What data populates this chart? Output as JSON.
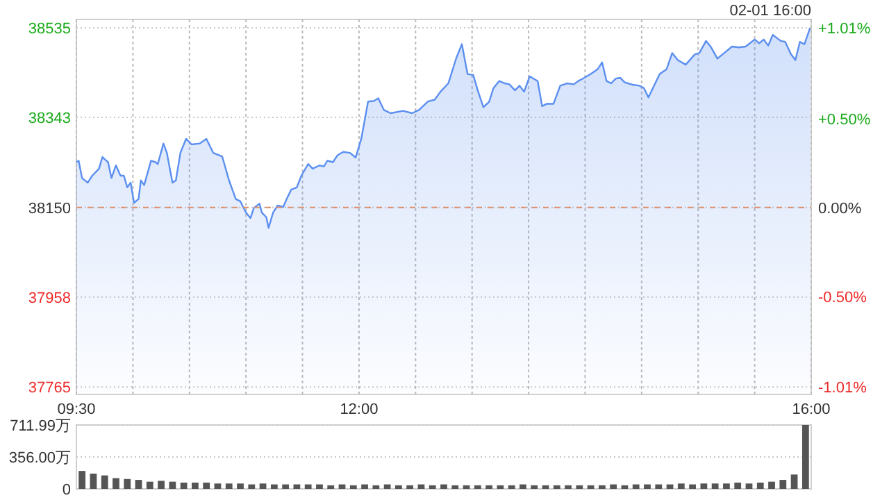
{
  "chart_data": [
    {
      "type": "area",
      "annotations": [
        "02-01 16:00"
      ],
      "x": [
        9.5,
        9.52,
        9.55,
        9.6,
        9.64,
        9.7,
        9.73,
        9.78,
        9.81,
        9.85,
        9.89,
        9.92,
        9.95,
        9.98,
        10.01,
        10.05,
        10.07,
        10.1,
        10.16,
        10.2,
        10.22,
        10.27,
        10.3,
        10.35,
        10.38,
        10.42,
        10.47,
        10.52,
        10.59,
        10.65,
        10.71,
        10.79,
        10.85,
        10.91,
        10.95,
        11.0,
        11.04,
        11.07,
        11.12,
        11.14,
        11.18,
        11.2,
        11.24,
        11.28,
        11.33,
        11.36,
        11.4,
        11.45,
        11.49,
        11.55,
        11.59,
        11.65,
        11.69,
        11.72,
        11.77,
        11.81,
        11.86,
        11.92,
        11.97,
        12.02,
        12.08,
        12.13,
        12.17,
        12.22,
        12.28,
        12.39,
        12.47,
        12.53,
        12.61,
        12.67,
        12.72,
        12.79,
        12.86,
        12.91,
        12.96,
        13.01,
        13.05,
        13.1,
        13.15,
        13.19,
        13.24,
        13.29,
        13.33,
        13.38,
        13.42,
        13.46,
        13.51,
        13.58,
        13.62,
        13.66,
        13.72,
        13.78,
        13.84,
        13.9,
        13.94,
        13.98,
        14.05,
        14.11,
        14.15,
        14.19,
        14.23,
        14.27,
        14.31,
        14.35,
        14.42,
        14.48,
        14.52,
        14.56,
        14.62,
        14.66,
        14.72,
        14.77,
        14.82,
        14.89,
        14.97,
        15.01,
        15.07,
        15.11,
        15.17,
        15.23,
        15.3,
        15.36,
        15.42,
        15.5,
        15.54,
        15.58,
        15.62,
        15.66,
        15.73,
        15.77,
        15.82,
        15.86,
        15.9,
        15.94,
        15.99
      ],
      "series": [
        {
          "color": "#5b8ff0",
          "values": [
            38247,
            38250,
            38213,
            38203,
            38218,
            38233,
            38258,
            38247,
            38213,
            38240,
            38218,
            38218,
            38193,
            38203,
            38160,
            38168,
            38208,
            38198,
            38250,
            38247,
            38243,
            38287,
            38267,
            38203,
            38208,
            38267,
            38297,
            38285,
            38287,
            38297,
            38267,
            38259,
            38208,
            38168,
            38163,
            38139,
            38127,
            38149,
            38158,
            38139,
            38129,
            38106,
            38139,
            38154,
            38151,
            38168,
            38188,
            38193,
            38218,
            38243,
            38233,
            38240,
            38238,
            38250,
            38247,
            38262,
            38269,
            38267,
            38257,
            38297,
            38377,
            38378,
            38384,
            38359,
            38352,
            38357,
            38352,
            38359,
            38377,
            38381,
            38398,
            38416,
            38470,
            38500,
            38436,
            38434,
            38401,
            38365,
            38376,
            38406,
            38421,
            38416,
            38414,
            38401,
            38411,
            38398,
            38431,
            38421,
            38367,
            38372,
            38372,
            38411,
            38416,
            38414,
            38421,
            38426,
            38436,
            38446,
            38461,
            38421,
            38416,
            38426,
            38428,
            38418,
            38413,
            38411,
            38406,
            38386,
            38416,
            38436,
            38446,
            38481,
            38466,
            38456,
            38478,
            38481,
            38507,
            38495,
            38469,
            38481,
            38495,
            38493,
            38495,
            38510,
            38502,
            38510,
            38497,
            38520,
            38507,
            38505,
            38479,
            38466,
            38505,
            38500,
            38535
          ]
        }
      ],
      "xlim": [
        9.5,
        16
      ],
      "xticks": [
        {
          "value": 9.5,
          "label": "09:30"
        },
        {
          "value": 10,
          "label": null
        },
        {
          "value": 10.5,
          "label": null
        },
        {
          "value": 11,
          "label": null
        },
        {
          "value": 11.5,
          "label": null
        },
        {
          "value": 12,
          "label": "12:00"
        },
        {
          "value": 12.5,
          "label": null
        },
        {
          "value": 13,
          "label": null
        },
        {
          "value": 13.5,
          "label": null
        },
        {
          "value": 14,
          "label": null
        },
        {
          "value": 14.5,
          "label": null
        },
        {
          "value": 15,
          "label": null
        },
        {
          "value": 15.5,
          "label": null
        },
        {
          "value": 16,
          "label": "16:00"
        }
      ],
      "ylim": [
        37749,
        38553
      ],
      "yticks": [
        37765,
        37958,
        38150,
        38343,
        38535
      ],
      "y2lim": [
        -1.051,
        1.057
      ],
      "y2ticks": [
        {
          "value": -1.01,
          "label": "-1.01%"
        },
        {
          "value": -0.5,
          "label": "-0.50%"
        },
        {
          "value": 0,
          "label": "0.00%"
        },
        {
          "value": 0.5,
          "label": "+0.50%"
        },
        {
          "value": 1.01,
          "label": "+1.01%"
        }
      ],
      "ref_lines": [
        {
          "axis": "y",
          "value": 38150,
          "color": "#e0906c",
          "line_style": "dashed"
        }
      ],
      "grid": true
    },
    {
      "type": "bar",
      "color": "#555555",
      "x": [
        9.55,
        9.65,
        9.75,
        9.85,
        9.95,
        10.05,
        10.15,
        10.25,
        10.35,
        10.45,
        10.55,
        10.65,
        10.75,
        10.85,
        10.95,
        11.05,
        11.15,
        11.25,
        11.35,
        11.45,
        11.55,
        11.65,
        11.75,
        11.85,
        11.95,
        12.05,
        12.15,
        12.25,
        12.35,
        12.45,
        12.55,
        12.65,
        12.75,
        12.85,
        12.95,
        13.05,
        13.15,
        13.25,
        13.35,
        13.45,
        13.55,
        13.65,
        13.75,
        13.85,
        13.95,
        14.05,
        14.15,
        14.25,
        14.35,
        14.45,
        14.55,
        14.65,
        14.75,
        14.85,
        14.95,
        15.05,
        15.15,
        15.25,
        15.35,
        15.45,
        15.55,
        15.65,
        15.75,
        15.85,
        15.95
      ],
      "values": [
        200,
        170,
        150,
        120,
        110,
        100,
        80,
        90,
        80,
        70,
        70,
        70,
        60,
        60,
        60,
        50,
        60,
        50,
        50,
        50,
        50,
        50,
        40,
        50,
        40,
        50,
        40,
        50,
        40,
        40,
        50,
        40,
        50,
        40,
        40,
        40,
        40,
        40,
        40,
        50,
        40,
        40,
        40,
        40,
        40,
        40,
        40,
        50,
        40,
        50,
        50,
        50,
        50,
        60,
        50,
        60,
        60,
        60,
        70,
        60,
        70,
        80,
        100,
        160,
        711.99
      ],
      "xlim": [
        9.5,
        16
      ],
      "ylim": [
        0,
        711.99
      ],
      "yticks": [
        {
          "value": 0,
          "label": "0"
        },
        {
          "value": 356,
          "label": "356.00万"
        },
        {
          "value": 711.99,
          "label": "711.99万"
        }
      ],
      "grid": "y",
      "tick_labels": "y"
    }
  ]
}
